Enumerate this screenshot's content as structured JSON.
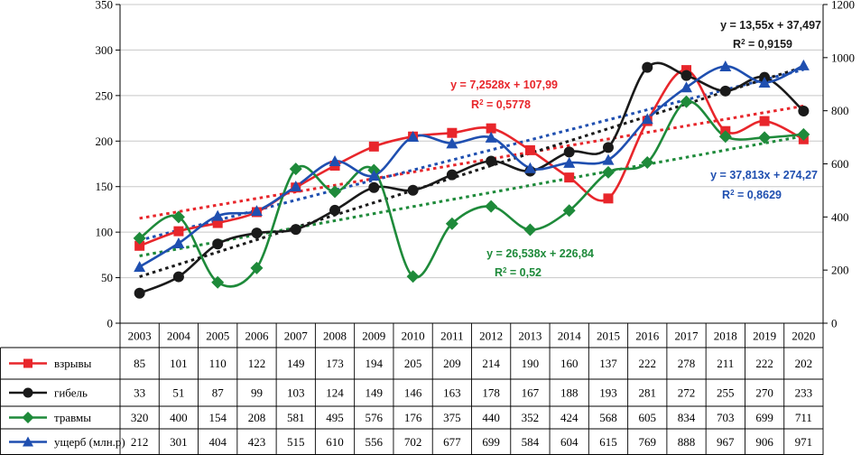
{
  "chart_data": {
    "type": "line",
    "categories": [
      "2003",
      "2004",
      "2005",
      "2006",
      "2007",
      "2008",
      "2009",
      "2010",
      "2011",
      "2012",
      "2013",
      "2014",
      "2015",
      "2016",
      "2017",
      "2018",
      "2019",
      "2020"
    ],
    "y_left": {
      "min": 0,
      "max": 350,
      "ticks": [
        "0",
        "50",
        "100",
        "150",
        "200",
        "250",
        "300",
        "350"
      ]
    },
    "y_right": {
      "min": 0,
      "max": 1200,
      "ticks": [
        "0",
        "200",
        "400",
        "600",
        "800",
        "1000",
        "1200"
      ]
    },
    "grid": "horizontal",
    "legend": "data-table",
    "series": [
      {
        "name": "взрывы",
        "axis": "left",
        "color": "#e8262b",
        "marker": "square",
        "values": [
          85,
          101,
          110,
          122,
          149,
          173,
          194,
          205,
          209,
          214,
          190,
          160,
          137,
          222,
          278,
          211,
          222,
          202
        ],
        "trend": {
          "slope": 7.2528,
          "intercept": 107.99,
          "eq": "y = 7,2528x + 107,99",
          "r2_label": "R",
          "r2_value": " = 0,5778"
        }
      },
      {
        "name": "гибель",
        "axis": "left",
        "color": "#1a1a1a",
        "marker": "circle",
        "values": [
          33,
          51,
          87,
          99,
          103,
          124,
          149,
          146,
          163,
          178,
          167,
          188,
          193,
          281,
          272,
          255,
          270,
          233
        ],
        "trend": {
          "slope": 13.55,
          "intercept": 37.497,
          "eq": "y = 13,55x + 37,497",
          "r2_label": "R",
          "r2_value": " = 0,9159"
        }
      },
      {
        "name": "травмы",
        "axis": "right",
        "color": "#1e8a3a",
        "marker": "diamond",
        "values": [
          320,
          400,
          154,
          208,
          581,
          495,
          576,
          176,
          375,
          440,
          352,
          424,
          568,
          605,
          834,
          703,
          699,
          711
        ],
        "trend": {
          "slope": 26.538,
          "intercept": 226.84,
          "eq": "y = 26,538x + 226,84",
          "r2_label": "R",
          "r2_value": " = 0,52"
        }
      },
      {
        "name": "ущерб (млн.р)",
        "axis": "right",
        "color": "#1f4fb0",
        "marker": "triangle",
        "values": [
          212,
          301,
          404,
          423,
          515,
          610,
          556,
          702,
          677,
          699,
          584,
          604,
          615,
          769,
          888,
          967,
          906,
          971
        ],
        "trend": {
          "slope": 37.813,
          "intercept": 274.27,
          "eq": "y = 37,813x + 274,27",
          "r2_label": "R",
          "r2_value": " = 0,8629"
        }
      }
    ]
  }
}
